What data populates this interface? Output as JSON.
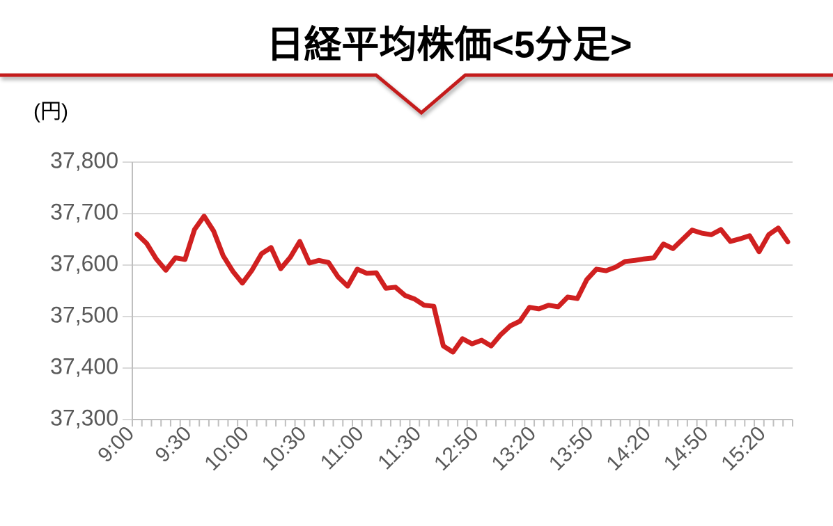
{
  "chart_data": {
    "type": "line",
    "title": "日経平均株価<5分足>",
    "y_label": "(円)",
    "categories": [
      "9:00",
      null,
      null,
      null,
      null,
      null,
      "9:30",
      null,
      null,
      null,
      null,
      null,
      "10:00",
      null,
      null,
      null,
      null,
      null,
      "10:30",
      null,
      null,
      null,
      null,
      null,
      "11:00",
      null,
      null,
      null,
      null,
      null,
      "11:30",
      null,
      null,
      null,
      null,
      null,
      "12:50",
      null,
      null,
      null,
      null,
      null,
      "13:20",
      null,
      null,
      null,
      null,
      null,
      "13:50",
      null,
      null,
      null,
      null,
      null,
      "14:20",
      null,
      null,
      null,
      null,
      null,
      "14:50",
      null,
      null,
      null,
      null,
      null,
      "15:20",
      null,
      null
    ],
    "values": [
      37660,
      37642,
      37612,
      37590,
      37614,
      37611,
      37669,
      37695,
      37666,
      37618,
      37588,
      37565,
      37590,
      37622,
      37634,
      37593,
      37615,
      37646,
      37604,
      37609,
      37605,
      37577,
      37559,
      37592,
      37584,
      37585,
      37555,
      37557,
      37541,
      37534,
      37522,
      37520,
      37443,
      37431,
      37457,
      37447,
      37454,
      37443,
      37465,
      37482,
      37491,
      37518,
      37515,
      37522,
      37519,
      37538,
      37535,
      37572,
      37592,
      37589,
      37596,
      37607,
      37609,
      37612,
      37614,
      37641,
      37632,
      37650,
      37668,
      37662,
      37659,
      37669,
      37646,
      37651,
      37657,
      37626,
      37659,
      37672,
      37645
    ],
    "color": "#d02020",
    "ylim": [
      37300,
      37800
    ],
    "yticks": [
      {
        "value": 37300,
        "label": "37,300"
      },
      {
        "value": 37400,
        "label": "37,400"
      },
      {
        "value": 37500,
        "label": "37,500"
      },
      {
        "value": 37600,
        "label": "37,600"
      },
      {
        "value": 37700,
        "label": "37,700"
      },
      {
        "value": 37800,
        "label": "37,800"
      }
    ],
    "grid": true
  }
}
